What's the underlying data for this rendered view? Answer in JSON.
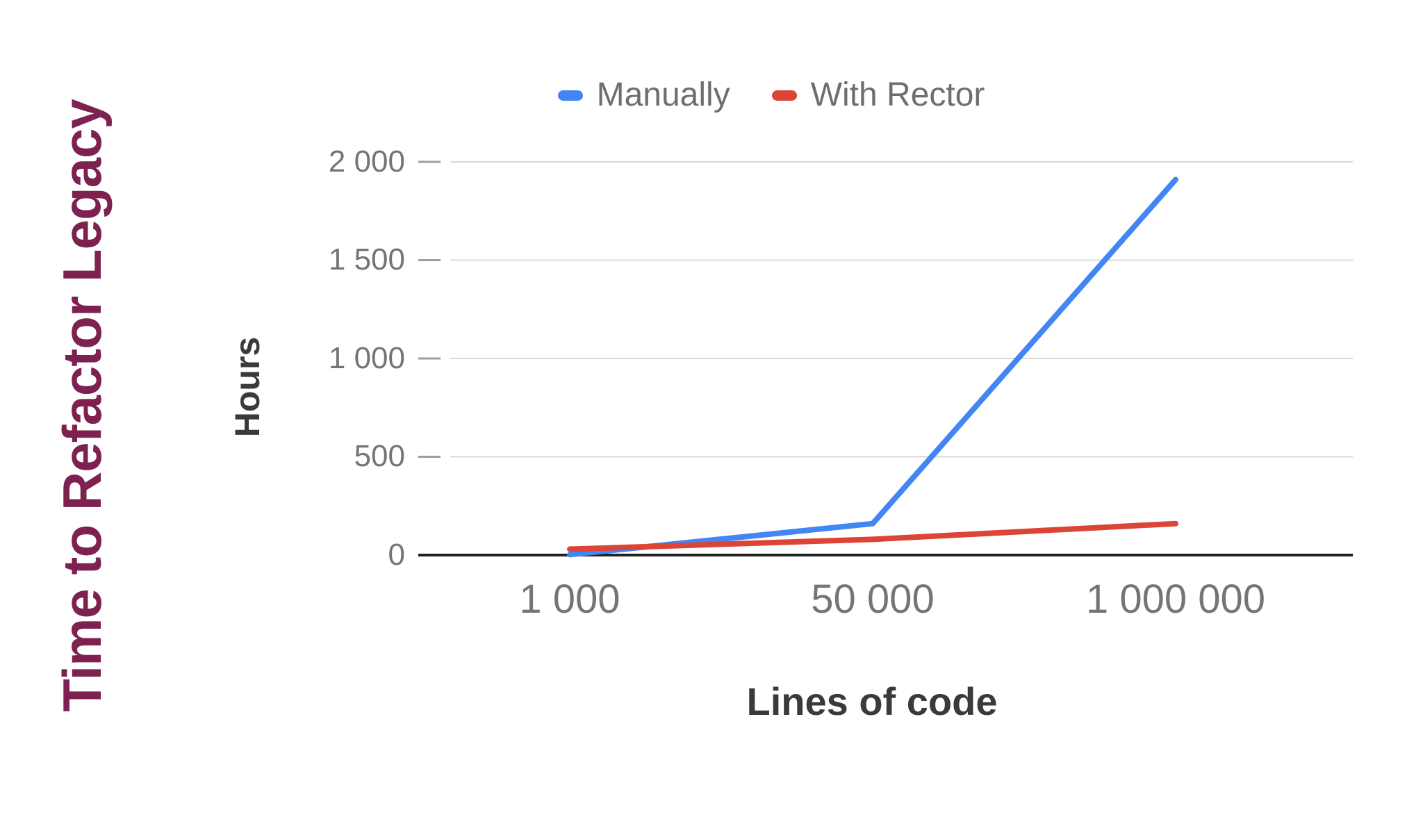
{
  "slide": {
    "title": "Time to Refactor Legacy"
  },
  "colors": {
    "title": "#7d2150",
    "manually_line": "#4285f4",
    "rector_line": "#db4437",
    "tick_text": "#757575",
    "axis_title_text": "#3a3a3a",
    "gridline": "#d9d9d9",
    "tick_mark": "#9e9e9e",
    "axis_line": "#212121"
  },
  "chart_data": {
    "type": "line",
    "title": "Time to Refactor Legacy",
    "xlabel": "Lines of code",
    "ylabel": "Hours",
    "categories": [
      "1 000",
      "50 000",
      "1 000 000"
    ],
    "x_values": [
      1000,
      50000,
      1000000
    ],
    "series": [
      {
        "name": "Manually",
        "color": "#4285f4",
        "values": [
          2,
          160,
          1910
        ]
      },
      {
        "name": "With Rector",
        "color": "#db4437",
        "values": [
          30,
          80,
          160
        ]
      }
    ],
    "yticks": [
      2000,
      1500,
      1000,
      500,
      0
    ],
    "ytick_labels": [
      "2 000",
      "1 500",
      "1 000",
      "500",
      "0"
    ],
    "ylim": [
      0,
      2000
    ],
    "grid": true,
    "legend_position": "top"
  }
}
